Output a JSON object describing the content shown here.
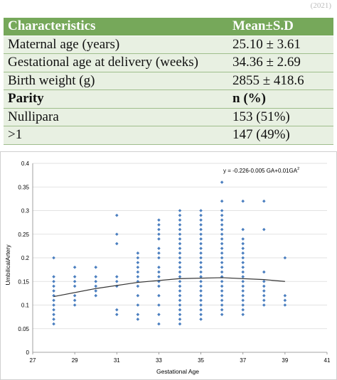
{
  "header_fragment": "(2021)",
  "table": {
    "header": [
      "Characteristics",
      "Mean±S.D"
    ],
    "rows": [
      {
        "label": "Maternal age (years)",
        "value": "25.10 ± 3.61",
        "bold": false
      },
      {
        "label": "Gestational age at delivery (weeks)",
        "value": "34.36 ± 2.69",
        "bold": false
      },
      {
        "label": "Birth weight (g)",
        "value": "2855 ± 418.6",
        "bold": false
      },
      {
        "label": "Parity",
        "value": "n (%)",
        "bold": true
      },
      {
        "label": "Nullipara",
        "value": "153 (51%)",
        "bold": false
      },
      {
        "label": ">1",
        "value": "147 (49%)",
        "bold": false
      }
    ]
  },
  "chart_data": {
    "type": "scatter",
    "xlabel": "Gestational Age",
    "ylabel": "UmbilicalArtery",
    "equation": "y = -0.226-0.005 GA+0.01GA",
    "equation_superscript": "2",
    "xlim": [
      27,
      41
    ],
    "ylim": [
      0,
      0.4
    ],
    "xticks": [
      "27",
      "29",
      "31",
      "33",
      "35",
      "37",
      "39",
      "41"
    ],
    "yticks": [
      "0",
      "0.05",
      "0.1",
      "0.15",
      "0.2",
      "0.25",
      "0.3",
      "0.35",
      "0.4"
    ],
    "marker_color": "#4a7ebf",
    "trend_color": "#333333",
    "points": [
      [
        28,
        0.06
      ],
      [
        28,
        0.07
      ],
      [
        28,
        0.08
      ],
      [
        28,
        0.09
      ],
      [
        28,
        0.1
      ],
      [
        28,
        0.11
      ],
      [
        28,
        0.12
      ],
      [
        28,
        0.13
      ],
      [
        28,
        0.14
      ],
      [
        28,
        0.15
      ],
      [
        28,
        0.16
      ],
      [
        28,
        0.2
      ],
      [
        29,
        0.1
      ],
      [
        29,
        0.11
      ],
      [
        29,
        0.12
      ],
      [
        29,
        0.14
      ],
      [
        29,
        0.15
      ],
      [
        29,
        0.16
      ],
      [
        29,
        0.18
      ],
      [
        30,
        0.12
      ],
      [
        30,
        0.13
      ],
      [
        30,
        0.14
      ],
      [
        30,
        0.15
      ],
      [
        30,
        0.16
      ],
      [
        30,
        0.18
      ],
      [
        31,
        0.08
      ],
      [
        31,
        0.09
      ],
      [
        31,
        0.14
      ],
      [
        31,
        0.15
      ],
      [
        31,
        0.16
      ],
      [
        31,
        0.23
      ],
      [
        31,
        0.25
      ],
      [
        31,
        0.29
      ],
      [
        32,
        0.07
      ],
      [
        32,
        0.08
      ],
      [
        32,
        0.1
      ],
      [
        32,
        0.12
      ],
      [
        32,
        0.14
      ],
      [
        32,
        0.15
      ],
      [
        32,
        0.16
      ],
      [
        32,
        0.17
      ],
      [
        32,
        0.18
      ],
      [
        32,
        0.19
      ],
      [
        32,
        0.2
      ],
      [
        32,
        0.21
      ],
      [
        33,
        0.06
      ],
      [
        33,
        0.08
      ],
      [
        33,
        0.1
      ],
      [
        33,
        0.12
      ],
      [
        33,
        0.14
      ],
      [
        33,
        0.15
      ],
      [
        33,
        0.16
      ],
      [
        33,
        0.17
      ],
      [
        33,
        0.18
      ],
      [
        33,
        0.2
      ],
      [
        33,
        0.21
      ],
      [
        33,
        0.22
      ],
      [
        33,
        0.24
      ],
      [
        33,
        0.25
      ],
      [
        33,
        0.26
      ],
      [
        33,
        0.27
      ],
      [
        33,
        0.28
      ],
      [
        34,
        0.06
      ],
      [
        34,
        0.07
      ],
      [
        34,
        0.08
      ],
      [
        34,
        0.09
      ],
      [
        34,
        0.1
      ],
      [
        34,
        0.11
      ],
      [
        34,
        0.12
      ],
      [
        34,
        0.13
      ],
      [
        34,
        0.14
      ],
      [
        34,
        0.15
      ],
      [
        34,
        0.16
      ],
      [
        34,
        0.17
      ],
      [
        34,
        0.18
      ],
      [
        34,
        0.19
      ],
      [
        34,
        0.2
      ],
      [
        34,
        0.21
      ],
      [
        34,
        0.22
      ],
      [
        34,
        0.23
      ],
      [
        34,
        0.24
      ],
      [
        34,
        0.25
      ],
      [
        34,
        0.26
      ],
      [
        34,
        0.27
      ],
      [
        34,
        0.28
      ],
      [
        34,
        0.29
      ],
      [
        34,
        0.3
      ],
      [
        35,
        0.07
      ],
      [
        35,
        0.08
      ],
      [
        35,
        0.09
      ],
      [
        35,
        0.1
      ],
      [
        35,
        0.11
      ],
      [
        35,
        0.12
      ],
      [
        35,
        0.13
      ],
      [
        35,
        0.14
      ],
      [
        35,
        0.15
      ],
      [
        35,
        0.16
      ],
      [
        35,
        0.17
      ],
      [
        35,
        0.18
      ],
      [
        35,
        0.19
      ],
      [
        35,
        0.2
      ],
      [
        35,
        0.21
      ],
      [
        35,
        0.22
      ],
      [
        35,
        0.23
      ],
      [
        35,
        0.24
      ],
      [
        35,
        0.25
      ],
      [
        35,
        0.26
      ],
      [
        35,
        0.27
      ],
      [
        35,
        0.28
      ],
      [
        35,
        0.29
      ],
      [
        35,
        0.3
      ],
      [
        36,
        0.08
      ],
      [
        36,
        0.09
      ],
      [
        36,
        0.1
      ],
      [
        36,
        0.11
      ],
      [
        36,
        0.12
      ],
      [
        36,
        0.13
      ],
      [
        36,
        0.14
      ],
      [
        36,
        0.15
      ],
      [
        36,
        0.16
      ],
      [
        36,
        0.17
      ],
      [
        36,
        0.18
      ],
      [
        36,
        0.19
      ],
      [
        36,
        0.2
      ],
      [
        36,
        0.21
      ],
      [
        36,
        0.22
      ],
      [
        36,
        0.23
      ],
      [
        36,
        0.24
      ],
      [
        36,
        0.25
      ],
      [
        36,
        0.26
      ],
      [
        36,
        0.27
      ],
      [
        36,
        0.28
      ],
      [
        36,
        0.29
      ],
      [
        36,
        0.3
      ],
      [
        36,
        0.32
      ],
      [
        36,
        0.36
      ],
      [
        37,
        0.08
      ],
      [
        37,
        0.09
      ],
      [
        37,
        0.1
      ],
      [
        37,
        0.11
      ],
      [
        37,
        0.12
      ],
      [
        37,
        0.13
      ],
      [
        37,
        0.14
      ],
      [
        37,
        0.15
      ],
      [
        37,
        0.16
      ],
      [
        37,
        0.17
      ],
      [
        37,
        0.18
      ],
      [
        37,
        0.19
      ],
      [
        37,
        0.2
      ],
      [
        37,
        0.21
      ],
      [
        37,
        0.22
      ],
      [
        37,
        0.23
      ],
      [
        37,
        0.24
      ],
      [
        37,
        0.26
      ],
      [
        37,
        0.32
      ],
      [
        38,
        0.1
      ],
      [
        38,
        0.11
      ],
      [
        38,
        0.12
      ],
      [
        38,
        0.13
      ],
      [
        38,
        0.14
      ],
      [
        38,
        0.15
      ],
      [
        38,
        0.17
      ],
      [
        38,
        0.26
      ],
      [
        38,
        0.32
      ],
      [
        39,
        0.1
      ],
      [
        39,
        0.11
      ],
      [
        39,
        0.12
      ],
      [
        39,
        0.2
      ]
    ],
    "trend_points": [
      [
        28,
        0.118
      ],
      [
        30,
        0.135
      ],
      [
        32,
        0.148
      ],
      [
        34,
        0.156
      ],
      [
        36,
        0.158
      ],
      [
        38,
        0.154
      ],
      [
        39,
        0.15
      ]
    ]
  }
}
